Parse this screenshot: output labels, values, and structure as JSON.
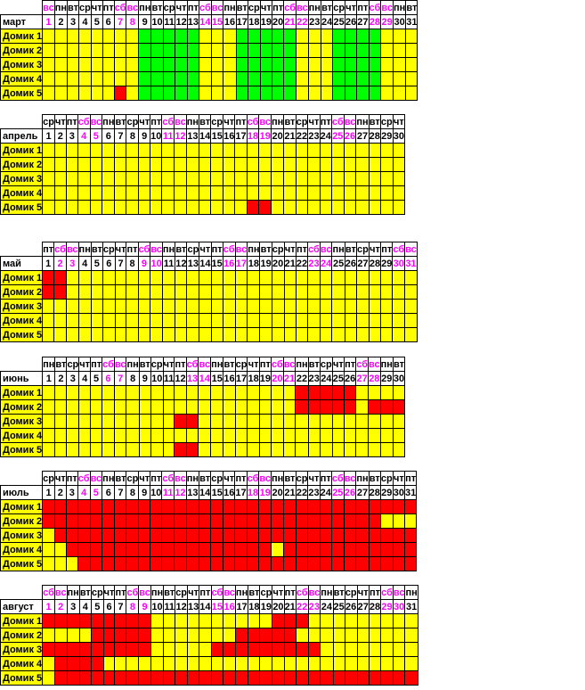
{
  "colors": {
    "free": "#ffff00",
    "booked": "#ff0000",
    "highlight": "#00ff00",
    "weekend_text": "#ff00ff"
  },
  "months": [
    {
      "name": "март",
      "weekdays": [
        "вс",
        "пн",
        "вт",
        "ср",
        "чт",
        "пт",
        "сб",
        "вс",
        "пн",
        "вт",
        "ср",
        "чт",
        "пт",
        "сб",
        "вс",
        "пн",
        "вт",
        "ср",
        "чт",
        "пт",
        "сб",
        "вс",
        "пн",
        "вт",
        "ср",
        "чт",
        "пт",
        "сб",
        "вс",
        "пн",
        "вт"
      ],
      "houses": [
        {
          "name": "Домик 1",
          "cells": "yyyyyyyygggggyyygggggyyyggggyyy"
        },
        {
          "name": "Домик 2",
          "cells": "yyyyyyyygggggyyygggggyyyggggyyy"
        },
        {
          "name": "Домик 3",
          "cells": "yyyyyyyygggggyyygggggyyyggggyyy"
        },
        {
          "name": "Домик 4",
          "cells": "yyyyyyyygggggyyygggggyyyggggyyy"
        },
        {
          "name": "Домик 5",
          "cells": "yyyyyyrygggggyyygggggyyyggggyyy"
        }
      ]
    },
    {
      "name": "апрель",
      "weekdays": [
        "ср",
        "чт",
        "пт",
        "сб",
        "вс",
        "пн",
        "вт",
        "ср",
        "чт",
        "пт",
        "сб",
        "вс",
        "пн",
        "вт",
        "ср",
        "чт",
        "пт",
        "сб",
        "вс",
        "пн",
        "вт",
        "ср",
        "чт",
        "пт",
        "сб",
        "вс",
        "пн",
        "вт",
        "ср",
        "чт"
      ],
      "houses": [
        {
          "name": "Домик 1",
          "cells": "yyyyyyyyyyyyyyyyyyyyyyyyyyyyyy"
        },
        {
          "name": "Домик 2",
          "cells": "yyyyyyyyyyyyyyyyyyyyyyyyyyyyyy"
        },
        {
          "name": "Домик 3",
          "cells": "yyyyyyyyyyyyyyyyyyyyyyyyyyyyyy"
        },
        {
          "name": "Домик 4",
          "cells": "yyyyyyyyyyyyyyyyyyyyyyyyyyyyyy"
        },
        {
          "name": "Домик 5",
          "cells": "yyyyyyyyyyyyyyyyyrryyyyyyyyyyy"
        }
      ]
    },
    {
      "name": "май",
      "weekdays": [
        "пт",
        "сб",
        "вс",
        "пн",
        "вт",
        "ср",
        "чт",
        "пт",
        "сб",
        "вс",
        "пн",
        "вт",
        "ср",
        "чт",
        "пт",
        "сб",
        "вс",
        "пн",
        "вт",
        "ср",
        "чт",
        "пт",
        "сб",
        "вс",
        "пн",
        "вт",
        "ср",
        "чт",
        "пт",
        "сб",
        "вс"
      ],
      "houses": [
        {
          "name": "Домик 1",
          "cells": "rryyyyyyyyyyyyyyyyyyyyyyyyyyyyy"
        },
        {
          "name": "Домик 2",
          "cells": "rryyyyyyyyyyyyyyyyyyyyyyyyyyyyy"
        },
        {
          "name": "Домик 3",
          "cells": "yyyyyyyyyyyyyyyyyyyyyyyyyyyyyyy"
        },
        {
          "name": "Домик 4",
          "cells": "yyyyyyyyyyyyyyyyyyyyyyyyyyyyyyy"
        },
        {
          "name": "Домик 5",
          "cells": "yyyyyyyyyyyyyyyyyyyyyyyyyyyyyyy"
        }
      ]
    },
    {
      "name": "июнь",
      "weekdays": [
        "пн",
        "вт",
        "ср",
        "чт",
        "пт",
        "сб",
        "вс",
        "пн",
        "вт",
        "ср",
        "чт",
        "пт",
        "сб",
        "вс",
        "пн",
        "вт",
        "ср",
        "чт",
        "пт",
        "сб",
        "вс",
        "пн",
        "вт",
        "ср",
        "чт",
        "пт",
        "сб",
        "вс",
        "пн",
        "вт"
      ],
      "houses": [
        {
          "name": "Домик 1",
          "cells": "yyyyyyyyyyyyyyyyyyyyyrrrrryyyy"
        },
        {
          "name": "Домик 2",
          "cells": "yyyyyyyyyyyyyyyyyyyyyrrrrryrrr"
        },
        {
          "name": "Домик 3",
          "cells": "yyyyyyyyyyyrryyyyyyyyyyyyyyyyy"
        },
        {
          "name": "Домик 4",
          "cells": "yyyyyyyyyyyyyyyyyyyyyyyyyyyyyy"
        },
        {
          "name": "Домик 5",
          "cells": "yyyyyyyyyyyrryyyyyyyyyyyyyyyyy"
        }
      ]
    },
    {
      "name": "июль",
      "weekdays": [
        "ср",
        "чт",
        "пт",
        "сб",
        "вс",
        "пн",
        "вт",
        "ср",
        "чт",
        "пт",
        "сб",
        "вс",
        "пн",
        "вт",
        "ср",
        "чт",
        "пт",
        "сб",
        "вс",
        "пн",
        "вт",
        "ср",
        "чт",
        "пт",
        "сб",
        "вс",
        "пн",
        "вт",
        "ср",
        "чт",
        "пт"
      ],
      "houses": [
        {
          "name": "Домик 1",
          "cells": "rrrrrrrrrrrrrrrrrrrrrrrrrrrrrrr"
        },
        {
          "name": "Домик 2",
          "cells": "rrrrrrrrrrrrrrrrrrrrrrrrrrrryyy"
        },
        {
          "name": "Домик 3",
          "cells": "yrrrrrrrrrrrrrrrrrrrrrrrrrrrrrr"
        },
        {
          "name": "Домик 4",
          "cells": "yyrrrrrrrrrrrrrrrrryrrrrrrrrrrr"
        },
        {
          "name": "Домик 5",
          "cells": "yyyrrrrrrrrrrrrrrrrrrrrrrrrrrrr"
        }
      ]
    },
    {
      "name": "август",
      "weekdays": [
        "сб",
        "вс",
        "пн",
        "вт",
        "ср",
        "чт",
        "пт",
        "сб",
        "вс",
        "пн",
        "вт",
        "ср",
        "чт",
        "пт",
        "сб",
        "вс",
        "пн",
        "вт",
        "ср",
        "чт",
        "пт",
        "сб",
        "вс",
        "пн",
        "вт",
        "ср",
        "чт",
        "пт",
        "сб",
        "вс",
        "пн"
      ],
      "houses": [
        {
          "name": "Домик 1",
          "cells": "rrrrrrrrryyyyyyyyyyrrryyyyyyyyy"
        },
        {
          "name": "Домик 2",
          "cells": "yyyyrrrrryyyyyyyrrrrryyyyyyyyyy"
        },
        {
          "name": "Домик 3",
          "cells": "rrrrrrrrryyyyyrrrrrrrrryyyyyyyy"
        },
        {
          "name": "Домик 4",
          "cells": "yrrrryyyyyyyyyyyyyyyyyyyyyyyyyy"
        },
        {
          "name": "Домик 5",
          "cells": "yrrrrrrrrrrrrrrrrrrrrrrrrrrrrrr"
        }
      ]
    }
  ]
}
